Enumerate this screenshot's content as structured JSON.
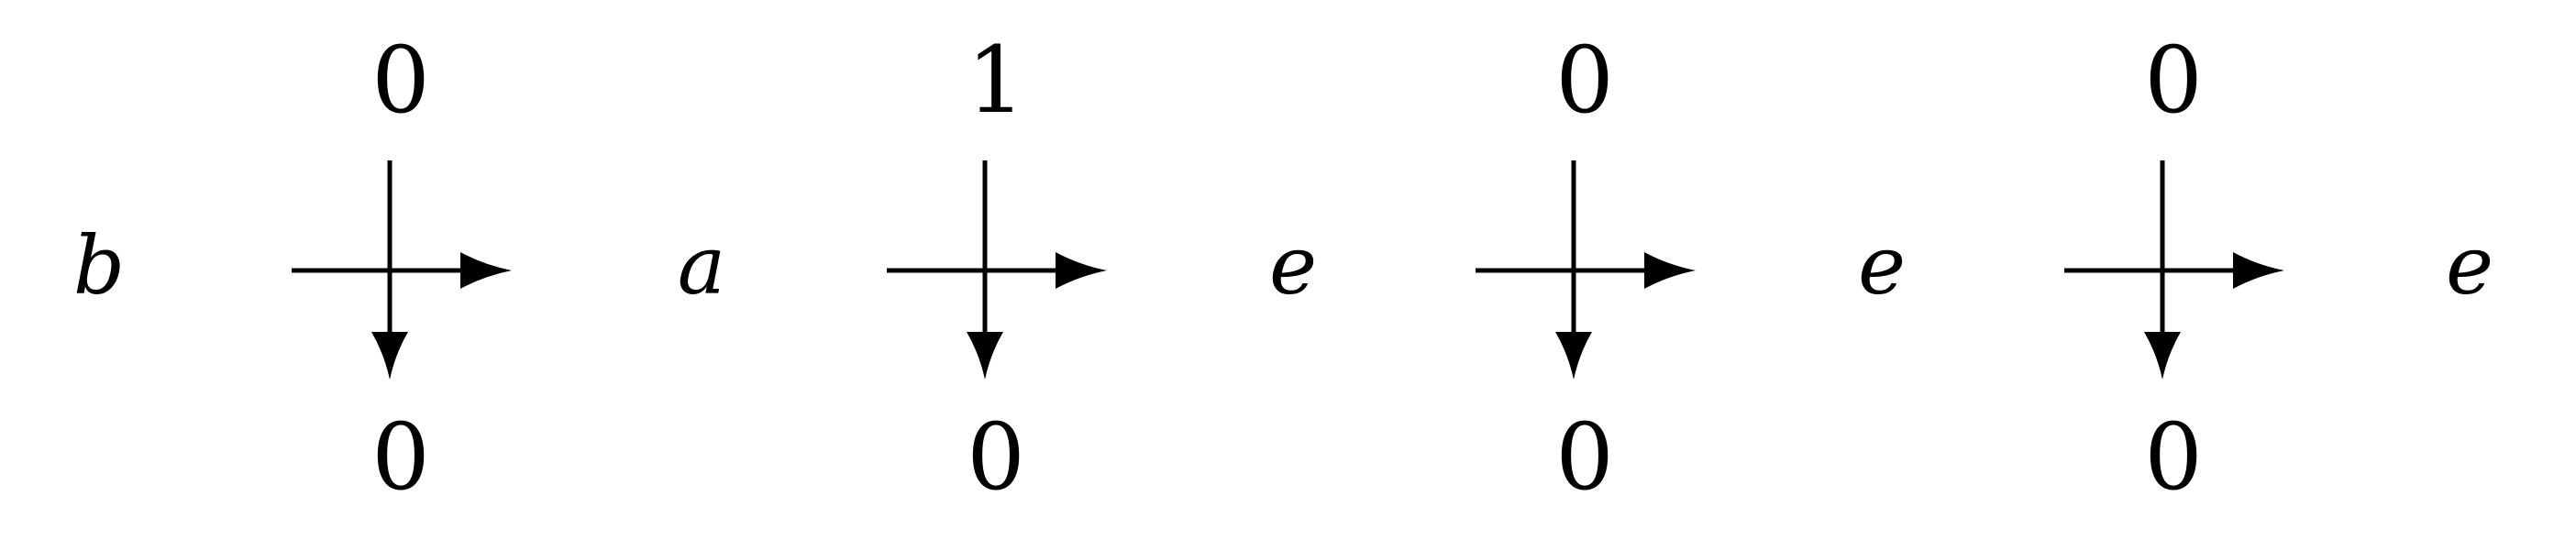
{
  "diagram": {
    "labels": [
      "b",
      "a",
      "e",
      "e",
      "e"
    ],
    "crossings": [
      {
        "top": "0",
        "bottom": "0"
      },
      {
        "top": "1",
        "bottom": "0"
      },
      {
        "top": "0",
        "bottom": "0"
      },
      {
        "top": "0",
        "bottom": "0"
      }
    ],
    "stroke_color": "#000000"
  }
}
